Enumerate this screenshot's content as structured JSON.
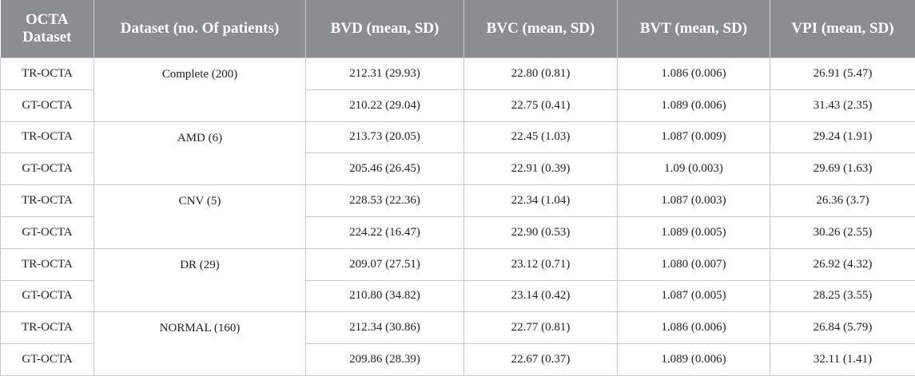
{
  "table": {
    "header": [
      "OCTA Dataset",
      "Dataset (no. Of patients)",
      "BVD (mean, SD)",
      "BVC (mean, SD)",
      "BVT (mean, SD)",
      "VPI (mean, SD)"
    ],
    "groups": [
      {
        "dataset": "Complete (200)",
        "rows": [
          [
            "TR-OCTA",
            "212.31 (29.93)",
            "22.80 (0.81)",
            "1.086 (0.006)",
            "26.91 (5.47)"
          ],
          [
            "GT-OCTA",
            "210.22 (29.04)",
            "22.75 (0.41)",
            "1.089 (0.006)",
            "31.43 (2.35)"
          ]
        ]
      },
      {
        "dataset": "AMD (6)",
        "rows": [
          [
            "TR-OCTA",
            "213.73 (20.05)",
            "22.45 (1.03)",
            "1.087 (0.009)",
            "29.24 (1.91)"
          ],
          [
            "GT-OCTA",
            "205.46 (26.45)",
            "22.91 (0.39)",
            "1.09 (0.003)",
            "29.69 (1.63)"
          ]
        ]
      },
      {
        "dataset": "CNV (5)",
        "rows": [
          [
            "TR-OCTA",
            "228.53 (22.36)",
            "22.34 (1.04)",
            "1.087 (0.003)",
            "26.36 (3.7)"
          ],
          [
            "GT-OCTA",
            "224.22 (16.47)",
            "22.90 (0.53)",
            "1.089 (0.005)",
            "30.26 (2.55)"
          ]
        ]
      },
      {
        "dataset": "DR (29)",
        "rows": [
          [
            "TR-OCTA",
            "209.07 (27.51)",
            "23.12 (0.71)",
            "1.080 (0.007)",
            "26.92 (4.32)"
          ],
          [
            "GT-OCTA",
            "210.80 (34.82)",
            "23.14 (0.42)",
            "1.087 (0.005)",
            "28.25 (3.55)"
          ]
        ]
      },
      {
        "dataset": "NORMAL (160)",
        "rows": [
          [
            "TR-OCTA",
            "212.34 (30.86)",
            "22.77 (0.81)",
            "1.086 (0.006)",
            "26.84 (5.79)"
          ],
          [
            "GT-OCTA",
            "209.86 (28.39)",
            "22.67 (0.37)",
            "1.089 (0.006)",
            "32.11 (1.41)"
          ]
        ]
      }
    ]
  }
}
